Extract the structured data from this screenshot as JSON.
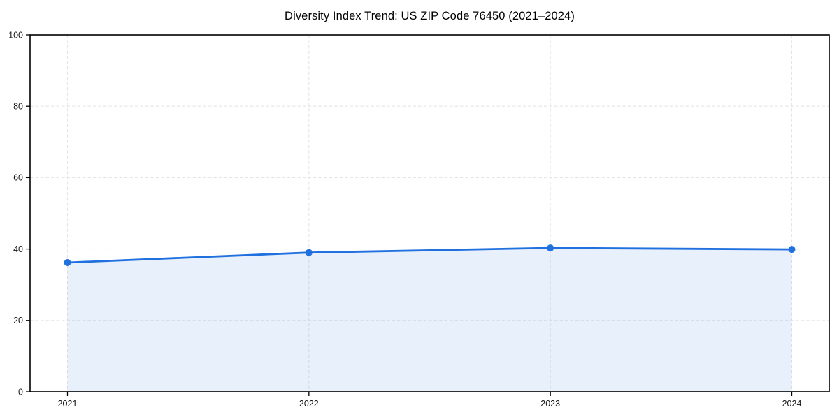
{
  "page": {
    "background": "#ffffff"
  },
  "chart_data": {
    "type": "area",
    "title": "Diversity Index Trend: US ZIP Code 76450 (2021–2024)",
    "categories": [
      "2021",
      "2022",
      "2023",
      "2024"
    ],
    "series": [
      {
        "name": "Diversity Index",
        "values": [
          36.2,
          39.0,
          40.3,
          39.9
        ]
      }
    ],
    "xlabel": "",
    "ylabel": "",
    "ylim": [
      0,
      100
    ],
    "yticks": [
      0,
      20,
      40,
      60,
      80,
      100
    ],
    "grid": true,
    "grid_style": "dashed",
    "legend_position": "none",
    "colors": {
      "line": "#2170e0",
      "marker": "#2170e0",
      "fill": "#2170e0",
      "fill_opacity": 0.1,
      "grid": "#e5e5e5",
      "spine": "#000000",
      "tick_text": "#141414",
      "background": "#ffffff"
    }
  }
}
